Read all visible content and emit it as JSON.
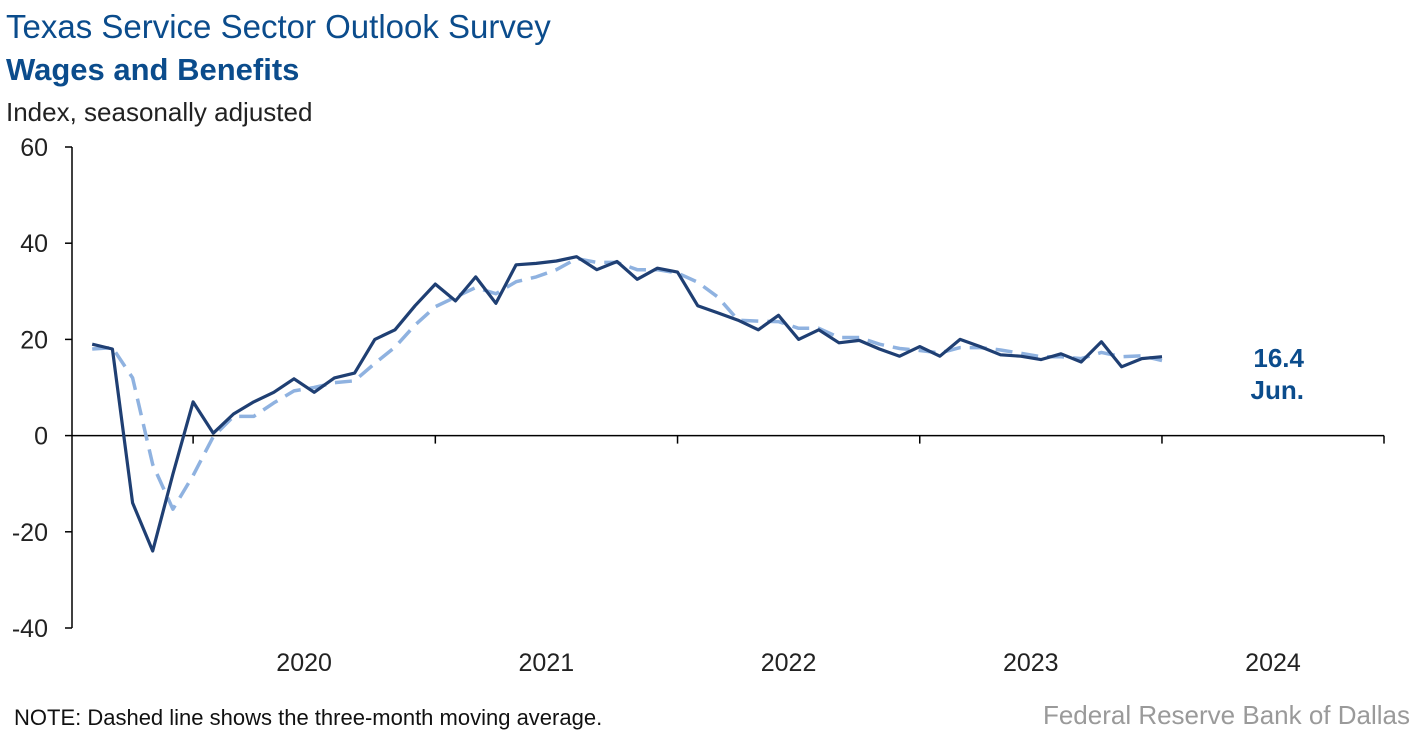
{
  "header": {
    "title": "Texas Service Sector Outlook Survey",
    "subtitle": "Wages and Benefits",
    "unit": "Index, seasonally adjusted"
  },
  "footer": {
    "note": "NOTE: Dashed line shows the three-month moving average.",
    "source": "Federal Reserve Bank of Dallas"
  },
  "colors": {
    "actual_line": "#1f3f73",
    "moving_average_line": "#8fb2e0",
    "label": "#0b4c8c",
    "axis": "#000000"
  },
  "chart_data": {
    "type": "line",
    "title": "Wages and Benefits",
    "ylabel": "Index, seasonally adjusted",
    "ylim": [
      -40,
      60
    ],
    "yticks": [
      "60",
      "40",
      "20",
      "0",
      "-20",
      "-40"
    ],
    "ytick_values": [
      60,
      40,
      20,
      0,
      -20,
      -40
    ],
    "x_start": "2019-08",
    "xlim": [
      "2019-07",
      "2024-12"
    ],
    "xtick_labels": [
      "2020",
      "2021",
      "2022",
      "2023",
      "2024"
    ],
    "grid": false,
    "end_label": {
      "value": "16.4",
      "month": "Jun."
    },
    "series": [
      {
        "style": "solid",
        "values": [
          19.0,
          18.0,
          -14.0,
          -24.0,
          -8.0,
          7.0,
          0.5,
          4.5,
          7.0,
          9.0,
          11.8,
          9.0,
          12.0,
          13.0,
          20.0,
          22.0,
          27.0,
          31.5,
          28.0,
          33.0,
          27.5,
          35.5,
          35.8,
          36.3,
          37.2,
          34.5,
          36.2,
          32.5,
          34.8,
          34.0,
          27.0,
          25.5,
          24.0,
          22.0,
          25.0,
          20.0,
          22.0,
          19.3,
          19.8,
          18.0,
          16.5,
          18.5,
          16.5,
          20.0,
          18.5,
          16.8,
          16.5,
          15.8,
          17.0,
          15.3,
          19.5,
          14.3,
          16.0,
          16.4
        ]
      },
      {
        "style": "dashed",
        "values": [
          18.0,
          18.3,
          12.0,
          -6.0,
          -15.3,
          -8.3,
          -0.2,
          4.0,
          4.0,
          6.8,
          9.3,
          10.0,
          11.0,
          11.4,
          15.0,
          18.4,
          23.0,
          26.8,
          28.8,
          30.8,
          29.5,
          32.0,
          33.0,
          34.5,
          36.8,
          36.0,
          36.0,
          34.5,
          34.5,
          33.8,
          31.9,
          28.8,
          24.0,
          23.8,
          23.7,
          22.3,
          22.3,
          20.4,
          20.4,
          19.0,
          18.1,
          17.7,
          17.2,
          18.3,
          18.3,
          17.8,
          17.1,
          16.4,
          16.4,
          16.0,
          17.3,
          16.4,
          16.6,
          15.6
        ]
      }
    ]
  }
}
